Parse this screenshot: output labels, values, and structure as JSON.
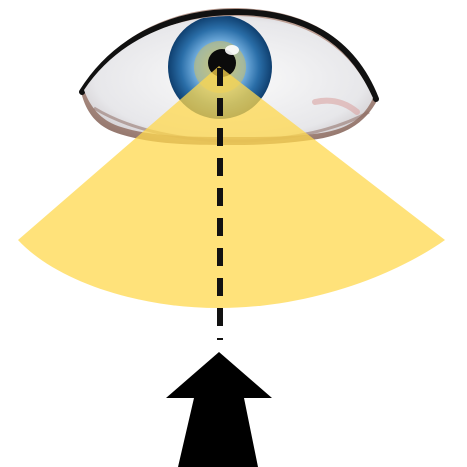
{
  "illustration": {
    "subject": "eye-field-of-view",
    "colors": {
      "background": "#ffffff",
      "cone_fill": "#ffd84d",
      "line": "#111111",
      "arrow": "#000000",
      "iris_outer": "#1f5f9c",
      "iris_inner": "#79b7e8",
      "iris_center_ring": "#c2b25b",
      "pupil": "#0b0b0b",
      "eyelid": "#111111",
      "skin": "#c7a79a"
    }
  }
}
